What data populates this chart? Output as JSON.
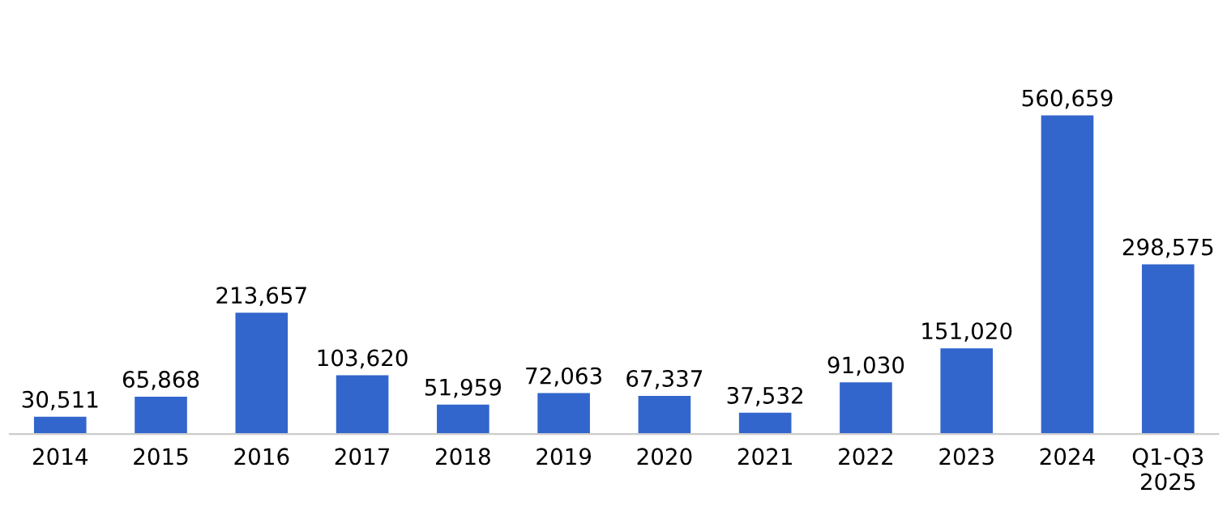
{
  "chart_data": {
    "type": "bar",
    "categories": [
      "2014",
      "2015",
      "2016",
      "2017",
      "2018",
      "2019",
      "2020",
      "2021",
      "2022",
      "2023",
      "2024",
      "Q1-Q3\n2025"
    ],
    "values": [
      30511,
      65868,
      213657,
      103620,
      51959,
      72063,
      67337,
      37532,
      91030,
      151020,
      560659,
      298575
    ],
    "color": "#3366cc",
    "value_labels": [
      "30,511",
      "65,868",
      "213,657",
      "103,620",
      "51,959",
      "72,063",
      "67,337",
      "37,532",
      "91,030",
      "151,020",
      "560,659",
      "298,575"
    ],
    "grid": false,
    "legend": false
  }
}
